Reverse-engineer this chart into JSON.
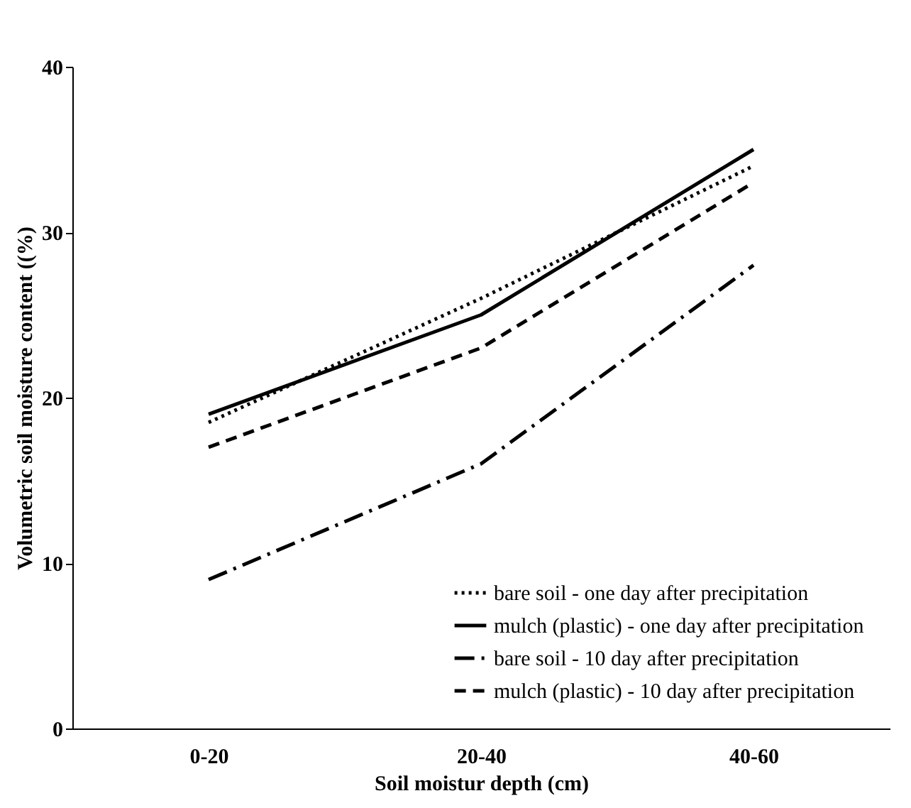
{
  "chart_data": {
    "type": "line",
    "xlabel": "Soil moistur depth (cm)",
    "ylabel": "Volumetric soil moisture content ((%)",
    "categories": [
      "0-20",
      "20-40",
      "40-60"
    ],
    "series": [
      {
        "name": "bare soil - one day after precipitation",
        "color": "#000000",
        "line_style": "dotted",
        "values": [
          18.5,
          26,
          34
        ]
      },
      {
        "name": "mulch (plastic) - one day after precipitation",
        "color": "#000000",
        "line_style": "solid",
        "values": [
          19,
          25,
          35
        ]
      },
      {
        "name": "bare soil - 10 day after precipitation",
        "color": "#000000",
        "line_style": "dashdot",
        "values": [
          9,
          16,
          28
        ]
      },
      {
        "name": "mulch (plastic) - 10 day after precipitation",
        "color": "#000000",
        "line_style": "dashed",
        "values": [
          17,
          23,
          33
        ]
      }
    ],
    "ylim": [
      0,
      40
    ],
    "yticks": [
      0,
      10,
      20,
      30,
      40
    ],
    "grid": false,
    "legend": "bottom right",
    "marker": "none"
  }
}
